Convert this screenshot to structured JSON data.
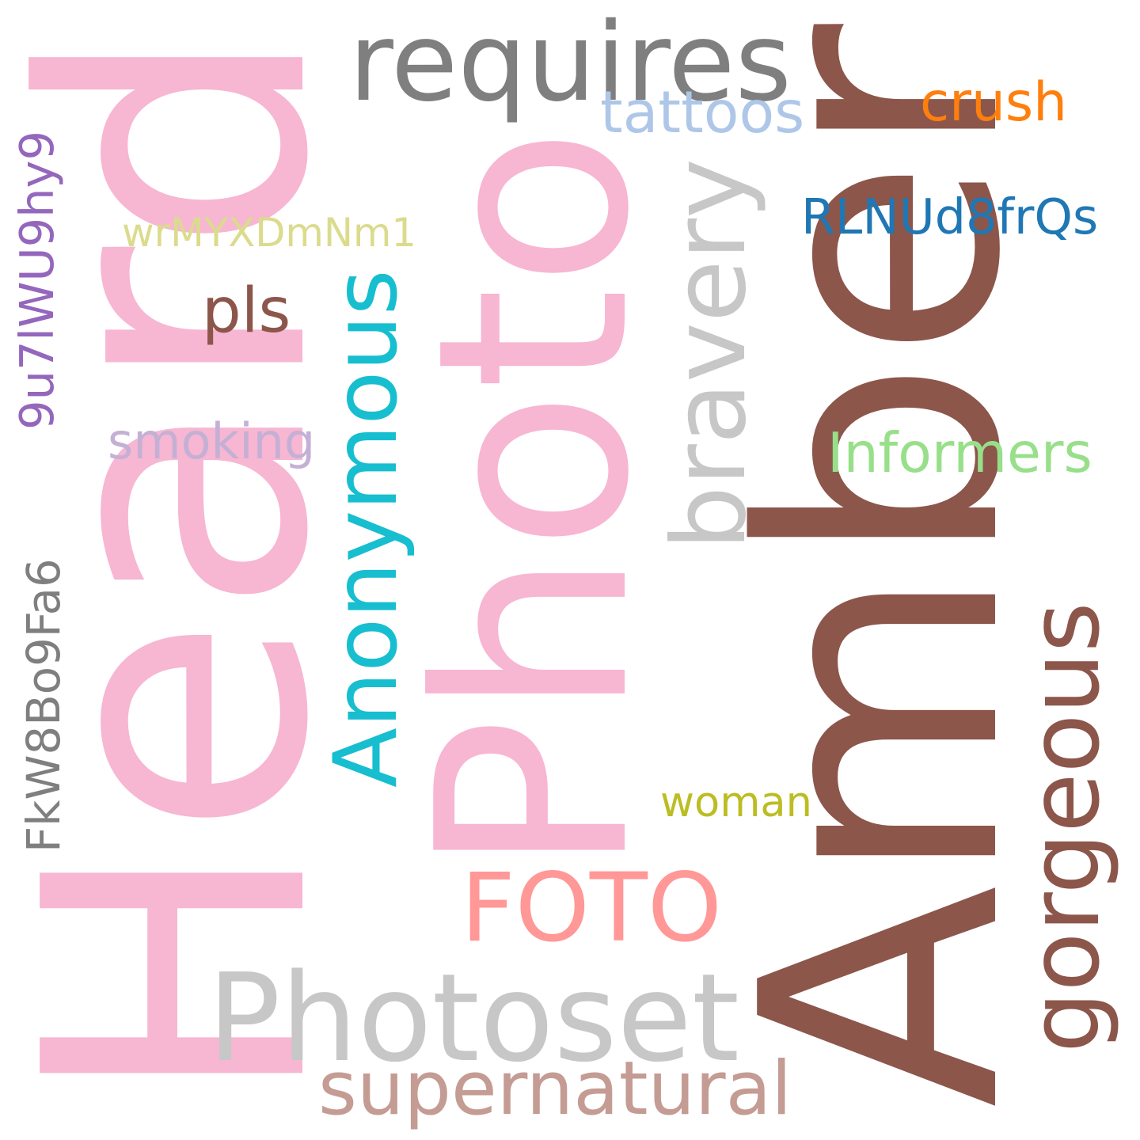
{
  "words": [
    {
      "id": "heard",
      "text": "Heard",
      "color": "#f7b6d2"
    },
    {
      "id": "amber",
      "text": "Amber",
      "color": "#8c564b"
    },
    {
      "id": "photo",
      "text": "Photo",
      "color": "#f7b6d2"
    },
    {
      "id": "requires",
      "text": "requires",
      "color": "#7f7f7f"
    },
    {
      "id": "tattoos",
      "text": "tattoos",
      "color": "#aec7e8"
    },
    {
      "id": "crush",
      "text": "crush",
      "color": "#ff7f0e"
    },
    {
      "id": "bravery",
      "text": "bravery",
      "color": "#c7c7c7"
    },
    {
      "id": "rlnud8frqs",
      "text": "RLNUd8frQs",
      "color": "#1f77b4"
    },
    {
      "id": "wrmyxdmnm1",
      "text": "wrMYXDmNm1",
      "color": "#dbdb8d"
    },
    {
      "id": "9u7lwu9hy9",
      "text": "9u7lWU9hy9",
      "color": "#9467bd"
    },
    {
      "id": "pls",
      "text": "pls",
      "color": "#8c564b"
    },
    {
      "id": "anonymous",
      "text": "Anonymous",
      "color": "#17becf"
    },
    {
      "id": "smoking",
      "text": "smoking",
      "color": "#c5b0d5"
    },
    {
      "id": "informers",
      "text": "Informers",
      "color": "#98df8a"
    },
    {
      "id": "fkw8bo9fa6",
      "text": "FkW8Bo9Fa6",
      "color": "#7f7f7f"
    },
    {
      "id": "gorgeous",
      "text": "gorgeous",
      "color": "#8c564b"
    },
    {
      "id": "woman",
      "text": "woman",
      "color": "#bcbd22"
    },
    {
      "id": "foto",
      "text": "FOTO",
      "color": "#ff9896"
    },
    {
      "id": "photoset",
      "text": "Photoset",
      "color": "#c7c7c7"
    },
    {
      "id": "supernatural",
      "text": "supernatural",
      "color": "#c49c94"
    }
  ]
}
